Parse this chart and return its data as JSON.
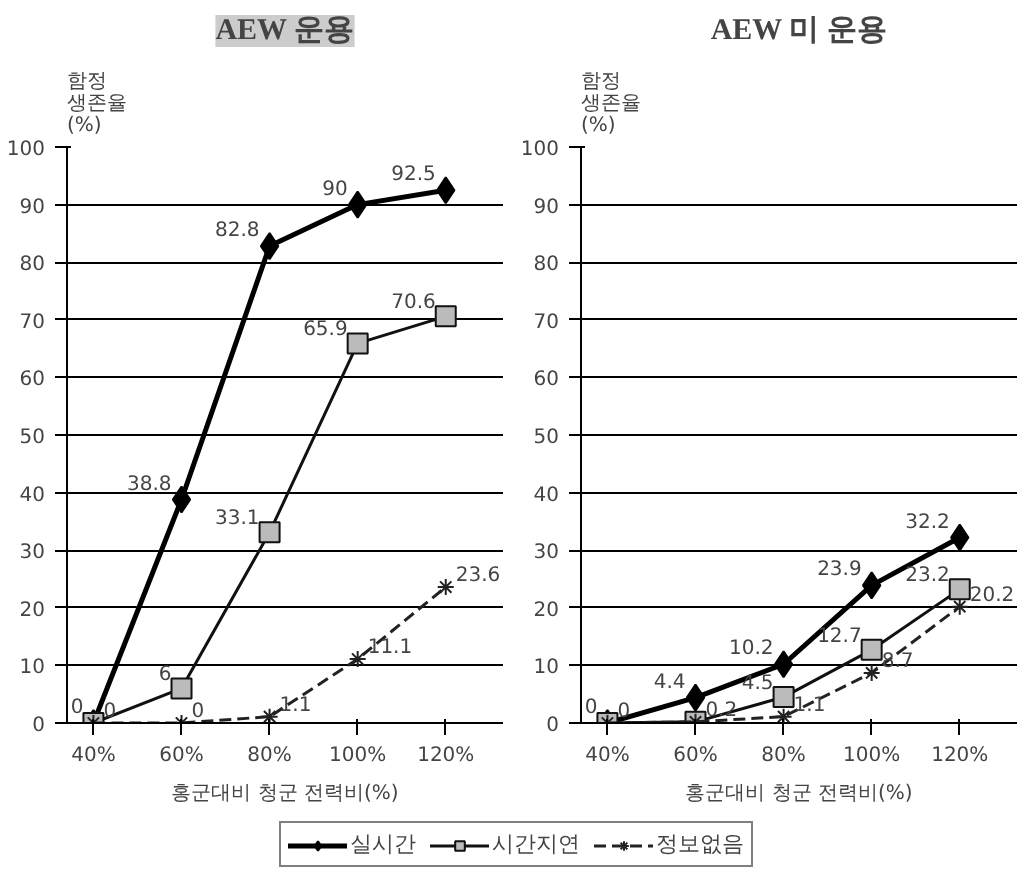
{
  "chart_data": [
    {
      "type": "line",
      "title": "AEW 운용",
      "ylabel": "함정\n생존율\n(%)",
      "xlabel": "홍군대비 청군 전력비(%)",
      "categories": [
        "40%",
        "60%",
        "80%",
        "100%",
        "120%"
      ],
      "ylim": [
        0,
        100
      ],
      "yticks": [
        0,
        10,
        20,
        30,
        40,
        50,
        60,
        70,
        80,
        90,
        100
      ],
      "grid": "y",
      "legend": "bottom",
      "series": [
        {
          "name": "실시간",
          "color": "#000000",
          "marker": "diamond",
          "line_style": "solid",
          "values": [
            0,
            38.8,
            82.8,
            90,
            92.5
          ],
          "value_labels": [
            "0",
            "38.8",
            "82.8",
            "90",
            "92.5"
          ]
        },
        {
          "name": "시간지연",
          "color": "#111111",
          "marker": "square",
          "line_style": "solid",
          "values": [
            0,
            6,
            33.1,
            65.9,
            70.6
          ],
          "value_labels": [
            null,
            "6",
            "33.1",
            "65.9",
            "70.6"
          ]
        },
        {
          "name": "정보없음",
          "color": "#222222",
          "marker": "cross",
          "line_style": "dashed",
          "values": [
            0,
            0,
            1.1,
            11.1,
            23.6
          ],
          "value_labels": [
            "0",
            "0",
            "1.1",
            "11.1",
            "23.6"
          ]
        }
      ]
    },
    {
      "type": "line",
      "title": "AEW 미 운용",
      "ylabel": "함정\n생존율\n(%)",
      "xlabel": "홍군대비 청군 전력비(%)",
      "categories": [
        "40%",
        "60%",
        "80%",
        "100%",
        "120%"
      ],
      "ylim": [
        0,
        100
      ],
      "yticks": [
        0,
        10,
        20,
        30,
        40,
        50,
        60,
        70,
        80,
        90,
        100
      ],
      "grid": "y",
      "legend": "bottom",
      "series": [
        {
          "name": "실시간",
          "color": "#000000",
          "marker": "diamond",
          "line_style": "solid",
          "values": [
            0,
            4.4,
            10.2,
            23.9,
            32.2
          ],
          "value_labels": [
            "0",
            "4.4",
            "10.2",
            "23.9",
            "32.2"
          ]
        },
        {
          "name": "시간지연",
          "color": "#111111",
          "marker": "square",
          "line_style": "solid",
          "values": [
            0,
            0.2,
            4.5,
            12.7,
            23.2
          ],
          "value_labels": [
            null,
            null,
            "4.5",
            "12.7",
            "23.2"
          ]
        },
        {
          "name": "정보없음",
          "color": "#222222",
          "marker": "cross",
          "line_style": "dashed",
          "values": [
            0,
            0.2,
            1.1,
            8.7,
            20.2
          ],
          "value_labels": [
            "0",
            "0.2",
            "1.1",
            "8.7",
            "20.2"
          ]
        }
      ]
    }
  ]
}
